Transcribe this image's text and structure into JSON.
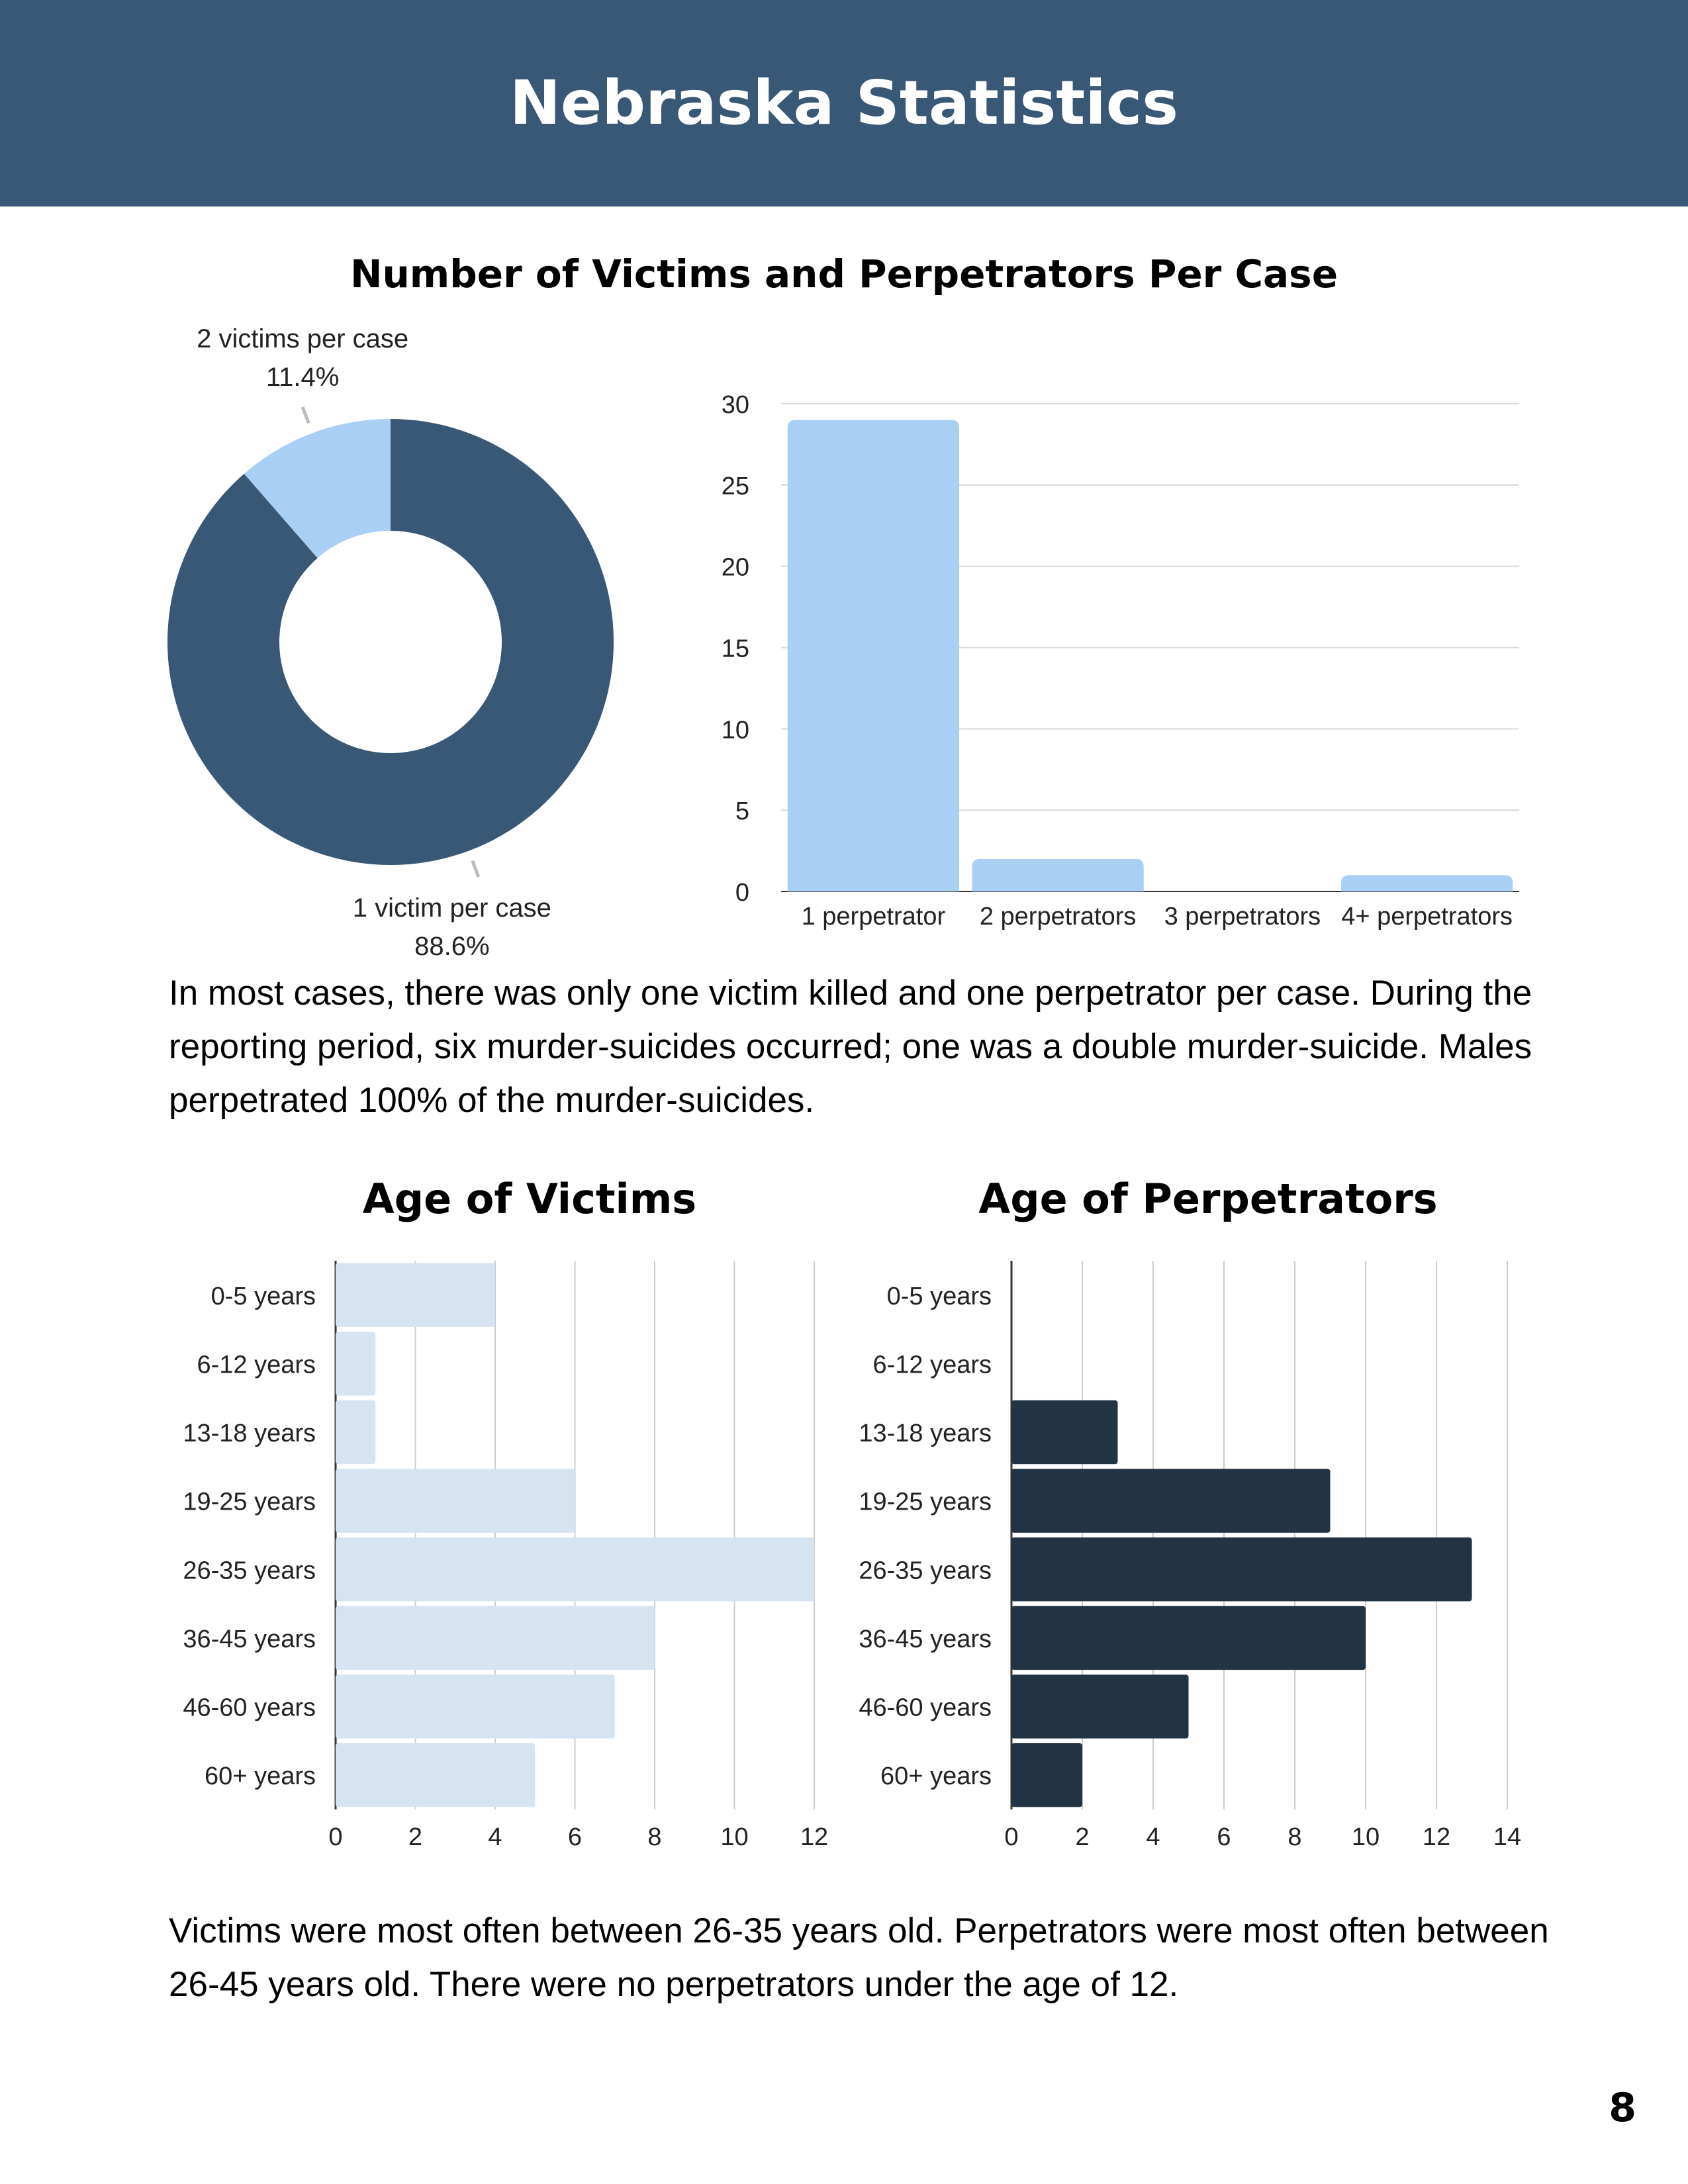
{
  "header": {
    "title": "Nebraska Statistics"
  },
  "section1": {
    "title": "Number of Victims and Perpetrators Per Case",
    "paragraph": "In most cases, there was only one victim killed and one perpetrator per case. During the reporting period, six murder-suicides occurred; one was a double murder-suicide. Males perpetrated 100% of the murder-suicides."
  },
  "section2": {
    "victims_title": "Age of Victims",
    "perpetrators_title": "Age of Perpetrators",
    "paragraph": "Victims were most often between 26-35 years old. Perpetrators were most often between 26-45 years old. There were no perpetrators under the age of 12."
  },
  "page_number": "8",
  "chart_data": [
    {
      "id": "victims-per-case",
      "type": "pie",
      "donut": true,
      "slices": [
        {
          "label": "1 victim per case",
          "value": 88.6,
          "pct": "88.6%",
          "color": "#385875"
        },
        {
          "label": "2 victims per case",
          "value": 11.4,
          "pct": "11.4%",
          "color": "#aacff5"
        }
      ]
    },
    {
      "id": "perpetrators-per-case",
      "type": "bar",
      "categories": [
        "1 perpetrator",
        "2 perpetrators",
        "3 perpetrators",
        "4+ perpetrators"
      ],
      "values": [
        29,
        2,
        0,
        1
      ],
      "ylim": [
        0,
        30
      ],
      "yticks": [
        0,
        5,
        10,
        15,
        20,
        25,
        30
      ],
      "color": "#aacff5",
      "grid": true
    },
    {
      "id": "age-of-victims",
      "type": "bar",
      "orientation": "horizontal",
      "title": "Age of Victims",
      "categories": [
        "0-5 years",
        "6-12 years",
        "13-18 years",
        "19-25 years",
        "26-35 years",
        "36-45 years",
        "46-60 years",
        "60+ years"
      ],
      "values": [
        4,
        1,
        1,
        6,
        12,
        8,
        7,
        5
      ],
      "xlim": [
        0,
        12
      ],
      "xticks": [
        0,
        2,
        4,
        6,
        8,
        10,
        12
      ],
      "color": "#d6e4f2",
      "grid": true
    },
    {
      "id": "age-of-perpetrators",
      "type": "bar",
      "orientation": "horizontal",
      "title": "Age of Perpetrators",
      "categories": [
        "0-5 years",
        "6-12 years",
        "13-18 years",
        "19-25 years",
        "26-35 years",
        "36-45 years",
        "46-60 years",
        "60+ years"
      ],
      "values": [
        0,
        0,
        3,
        9,
        13,
        10,
        5,
        2
      ],
      "xlim": [
        0,
        14
      ],
      "xticks": [
        0,
        2,
        4,
        6,
        8,
        10,
        12,
        14
      ],
      "color": "#223343",
      "grid": true
    }
  ]
}
